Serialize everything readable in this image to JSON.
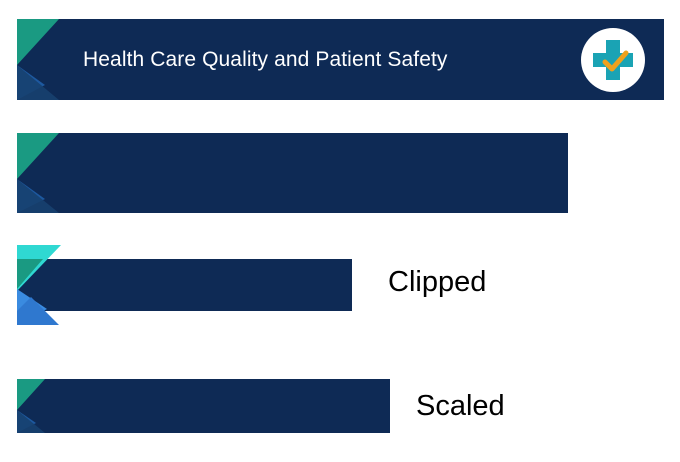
{
  "banners": {
    "full": {
      "title": "Health Care Quality and Patient Safety",
      "logo_icon": "medical-cross-check-icon"
    },
    "labels": {
      "clipped": "Clipped",
      "scaled": "Scaled"
    }
  },
  "colors": {
    "navy": "#0e2a55",
    "teal": "#1a9a82",
    "blue": "#1f5ea8",
    "cyan_bright": "#2fd8d2",
    "blue_bright": "#3a8be0",
    "logo_cross": "#1aa3b4",
    "logo_check": "#f0a11c"
  }
}
